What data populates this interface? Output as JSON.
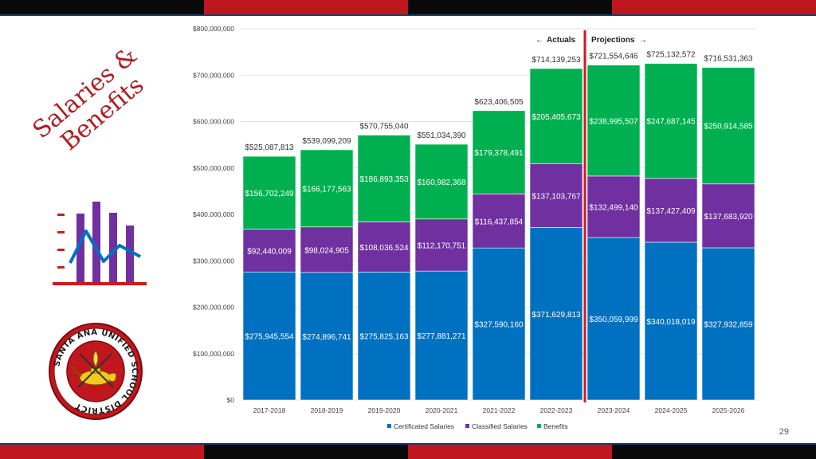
{
  "colors": {
    "band_red": "#c0161d",
    "band_black": "#0a0a0a",
    "band_border": "#1f3b6e",
    "title": "#b01c23",
    "certificated": "#0070c0",
    "classified": "#7030a0",
    "benefits": "#00b050",
    "divider": "#d01820",
    "icon_bar": "#7030a0",
    "icon_line": "#0070c0",
    "icon_axis": "#d01820"
  },
  "slide": {
    "title_line1": "Salaries &",
    "title_line2": "Benefits",
    "page_number": "29",
    "seal_text": "SANTA ANA UNIFIED SCHOOL DISTRICT"
  },
  "chart_data": {
    "type": "bar",
    "stacked": true,
    "categories": [
      "2017-2018",
      "2018-2019",
      "2019-2020",
      "2020-2021",
      "2021-2022",
      "2022-2023",
      "2023-2024",
      "2024-2025",
      "2025-2026"
    ],
    "series": [
      {
        "name": "Certificated Salaries",
        "values": [
          275945554,
          274896741,
          275825163,
          277881271,
          327590160,
          371629813,
          350059999,
          340018019,
          327932859
        ],
        "labels": [
          "$275,945,554",
          "$274,896,741",
          "$275,825,163",
          "$277,881,271",
          "$327,590,160",
          "$371,629,813",
          "$350,059,999",
          "$340,018,019",
          "$327,932,859"
        ]
      },
      {
        "name": "Classified Salaries",
        "values": [
          92440009,
          98024905,
          108036524,
          112170751,
          116437854,
          137103767,
          132499140,
          137427409,
          137683920
        ],
        "labels": [
          "$92,440,009",
          "$98,024,905",
          "$108,036,524",
          "$112,170,751",
          "$116,437,854",
          "$137,103,767",
          "$132,499,140",
          "$137,427,409",
          "$137,683,920"
        ]
      },
      {
        "name": "Benefits",
        "values": [
          156702249,
          166177563,
          186893353,
          160982368,
          179378491,
          205405673,
          238995507,
          247687145,
          250914585
        ],
        "labels": [
          "$156,702,249",
          "$166,177,563",
          "$186,893,353",
          "$160,982,368",
          "$179,378,491",
          "$205,405,673",
          "$238,995,507",
          "$247,687,145",
          "$250,914,585"
        ]
      }
    ],
    "totals": [
      525087813,
      539099209,
      570755040,
      551034390,
      623406505,
      714139253,
      721554646,
      725132572,
      716531363
    ],
    "total_labels": [
      "$525,087,813",
      "$539,099,209",
      "$570,755,040",
      "$551,034,390",
      "$623,406,505",
      "$714,139,253",
      "$721,554,646",
      "$725,132,572",
      "$716,531,363"
    ],
    "ylim": [
      0,
      800000000
    ],
    "yticks": [
      0,
      100000000,
      200000000,
      300000000,
      400000000,
      500000000,
      600000000,
      700000000,
      800000000
    ],
    "ytick_labels": [
      "$0",
      "$100,000,000",
      "$200,000,000",
      "$300,000,000",
      "$400,000,000",
      "$500,000,000",
      "$600,000,000",
      "$700,000,000",
      "$800,000,000"
    ],
    "legend_position": "bottom",
    "grid": true,
    "annotations": {
      "actuals": "Actuals",
      "projections": "Projections",
      "divider_after_index": 5
    }
  }
}
